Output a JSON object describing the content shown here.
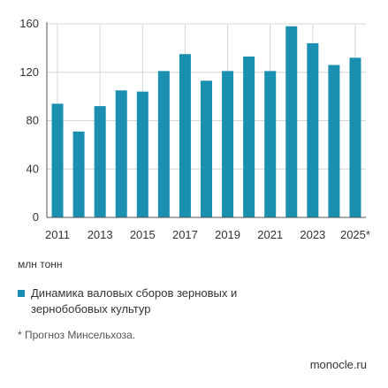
{
  "chart_data": {
    "type": "bar",
    "categories": [
      "2011",
      "2012",
      "2013",
      "2014",
      "2015",
      "2016",
      "2017",
      "2018",
      "2019",
      "2020",
      "2021",
      "2022",
      "2023",
      "2024",
      "2025*"
    ],
    "x_tick_labels": [
      "2011",
      "2013",
      "2015",
      "2017",
      "2019",
      "2021",
      "2023",
      "2025*"
    ],
    "values": [
      94,
      71,
      92,
      105,
      104,
      121,
      135,
      113,
      121,
      133,
      121,
      158,
      144,
      126,
      132
    ],
    "ylim": [
      0,
      160
    ],
    "yticks": [
      0,
      40,
      80,
      120,
      160
    ],
    "grid": true,
    "unit_label": "млн тонн",
    "series": [
      {
        "name": "Динамика валовых сборов зерновых и зернобобовых культур",
        "color": "#1a8fb0"
      }
    ],
    "legend_position": "bottom-left"
  },
  "colors": {
    "bar": "#1a8fb0",
    "grid": "#d6d6d6",
    "axis": "#555555"
  },
  "footnote": "* Прогноз Минсельхоза.",
  "source": "monocle.ru"
}
